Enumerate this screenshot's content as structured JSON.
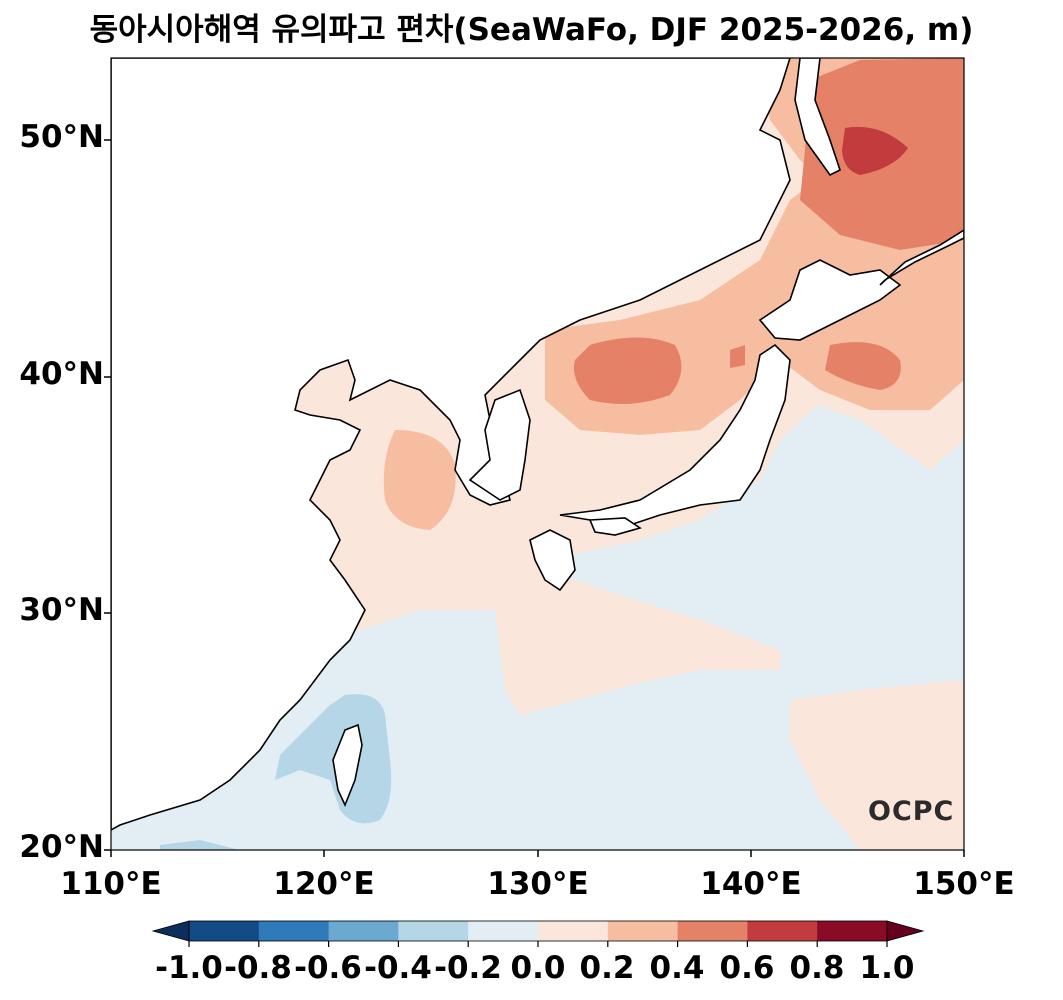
{
  "title": "동아시아해역 유의파고 편차(SeaWaFo, DJF 2025-2026, m)",
  "logo_text": "OCPC",
  "map": {
    "projection": "PlateCarree",
    "lon_range": [
      110,
      150
    ],
    "lat_range": [
      20,
      53.5
    ],
    "x_ticks": [
      110,
      120,
      130,
      140,
      150
    ],
    "x_tick_labels": [
      "110°E",
      "120°E",
      "130°E",
      "140°E",
      "150°E"
    ],
    "y_ticks": [
      20,
      30,
      40,
      50
    ],
    "y_tick_labels": [
      "20°N",
      "30°N",
      "40°N",
      "50°N"
    ],
    "coastline_color": "#000000"
  },
  "colorbar": {
    "levels": [
      -1.0,
      -0.8,
      -0.6,
      -0.4,
      -0.2,
      0.0,
      0.2,
      0.4,
      0.6,
      0.8,
      1.0
    ],
    "tick_labels": [
      "-1.0",
      "-0.8",
      "-0.6",
      "-0.4",
      "-0.2",
      "0.0",
      "0.2",
      "0.4",
      "0.6",
      "0.8",
      "1.0"
    ],
    "colors": [
      "#134b87",
      "#2f7ab8",
      "#6ba9d0",
      "#b4d6e7",
      "#e3eef4",
      "#fbe6dc",
      "#f6bda1",
      "#e48167",
      "#c23b3d",
      "#8a0b25"
    ],
    "extend": "both",
    "under_color": "#0b2e5c",
    "over_color": "#67001f"
  },
  "field": {
    "variable": "significant wave height anomaly",
    "units": "m",
    "regions": [
      {
        "level_range": [
          -0.4,
          -0.2
        ],
        "area": "Taiwan and Luzon Strait surroundings"
      },
      {
        "level_range": [
          -0.2,
          0.0
        ],
        "area": "southern East China Sea, south of Japan, NW Pacific east of Japan"
      },
      {
        "level_range": [
          0.0,
          0.2
        ],
        "area": "Yellow Sea, northern East China Sea, East Sea margins, Okinawa band"
      },
      {
        "level_range": [
          0.2,
          0.4
        ],
        "area": "central Yellow Sea, East Sea, off Hokkaido"
      },
      {
        "level_range": [
          0.4,
          0.6
        ],
        "area": "central East Sea, off Sanriku, Sea of Okhotsk"
      },
      {
        "level_range": [
          0.6,
          0.8
        ],
        "area": "Sea of Okhotsk core"
      }
    ]
  }
}
